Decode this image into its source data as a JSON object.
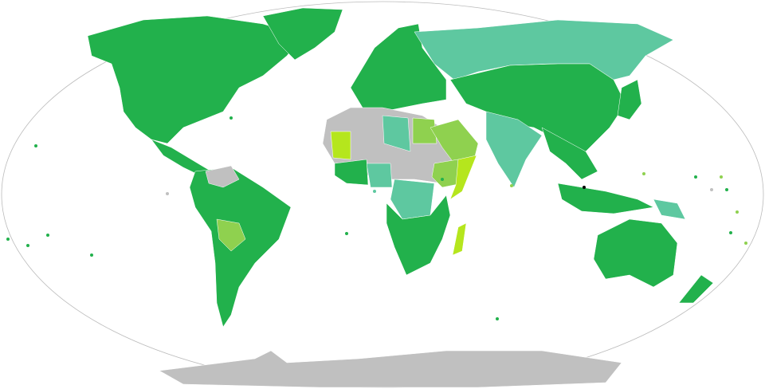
{
  "map": {
    "projection_outline": true,
    "colors": {
      "green": "#22b14c",
      "teal": "#5ec8a0",
      "light_green": "#8fd14f",
      "yellow_green": "#b5e61d",
      "gray": "#c0c0c0"
    },
    "regions": [
      {
        "name": "north-america",
        "category": "green"
      },
      {
        "name": "greenland",
        "category": "green"
      },
      {
        "name": "central-america",
        "category": "green"
      },
      {
        "name": "south-america",
        "category": "green"
      },
      {
        "name": "venezuela",
        "category": "gray"
      },
      {
        "name": "bolivia",
        "category": "light_green"
      },
      {
        "name": "europe",
        "category": "green"
      },
      {
        "name": "russia",
        "category": "teal"
      },
      {
        "name": "china-central-asia",
        "category": "green"
      },
      {
        "name": "north-africa-gray",
        "category": "gray"
      },
      {
        "name": "libya",
        "category": "teal"
      },
      {
        "name": "egypt",
        "category": "light_green"
      },
      {
        "name": "mauritania",
        "category": "yellow_green"
      },
      {
        "name": "arabia",
        "category": "light_green"
      },
      {
        "name": "ethiopia",
        "category": "light_green"
      },
      {
        "name": "somalia",
        "category": "yellow_green"
      },
      {
        "name": "nigeria",
        "category": "teal"
      },
      {
        "name": "central-africa",
        "category": "teal"
      },
      {
        "name": "west-africa",
        "category": "green"
      },
      {
        "name": "southern-africa",
        "category": "green"
      },
      {
        "name": "madagascar",
        "category": "yellow_green"
      },
      {
        "name": "india",
        "category": "teal"
      },
      {
        "name": "southeast-asia",
        "category": "green"
      },
      {
        "name": "indonesia",
        "category": "green"
      },
      {
        "name": "papua",
        "category": "teal"
      },
      {
        "name": "australia",
        "category": "green"
      },
      {
        "name": "new-zealand",
        "category": "green"
      },
      {
        "name": "japan",
        "category": "green"
      },
      {
        "name": "antarctica",
        "category": "gray"
      }
    ]
  }
}
